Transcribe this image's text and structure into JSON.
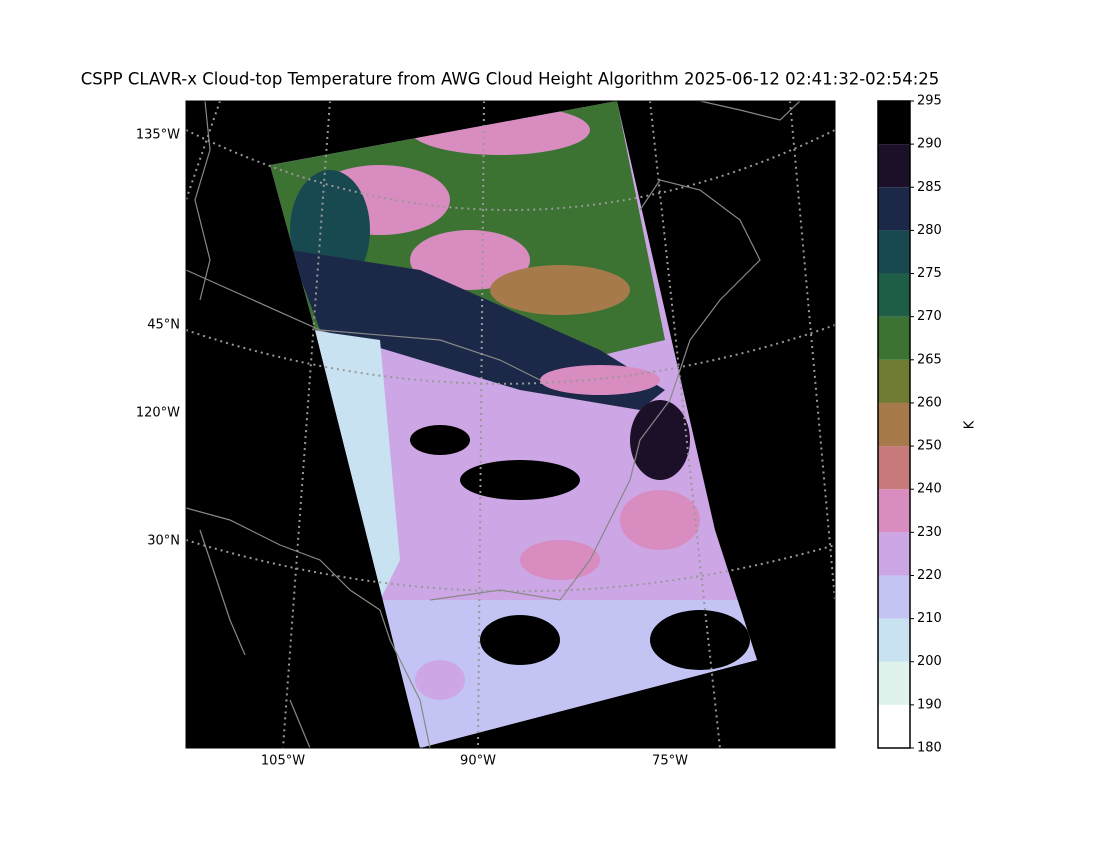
{
  "title": "CSPP CLAVR-x Cloud-top Temperature from AWG Cloud Height Algorithm 2025-06-12 02:41:32-02:54:25",
  "map": {
    "left_labels": [
      "135°W",
      "45°N",
      "120°W",
      "30°N"
    ],
    "bottom_labels": [
      "105°W",
      "90°W",
      "75°W"
    ]
  },
  "colorbar": {
    "label": "K",
    "ticks": [
      180,
      190,
      200,
      210,
      220,
      230,
      240,
      250,
      260,
      265,
      270,
      275,
      280,
      285,
      290,
      295
    ],
    "colors": [
      "#ffffff",
      "#dff2ec",
      "#c8e2f2",
      "#c4c4f4",
      "#cda6e6",
      "#d88cc0",
      "#c87a7a",
      "#a67a4a",
      "#6f7a32",
      "#3c7232",
      "#1f5e46",
      "#184850",
      "#1c2848",
      "#1c1028",
      "#000000"
    ]
  }
}
